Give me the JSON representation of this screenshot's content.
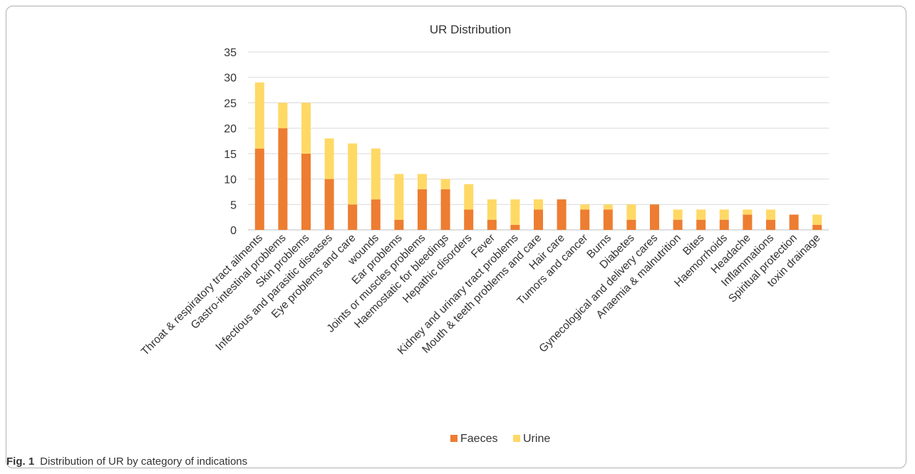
{
  "chart_data": {
    "type": "bar",
    "stacked": true,
    "title": "UR  Distribution",
    "categories": [
      "Throat & respiratory tract ailments",
      "Gastro-intestinal problems",
      "Skin problems",
      "Infectious and parasitic diseases",
      "Eye problems and care",
      "wounds",
      "Ear problems",
      "Joints or muscles problems",
      "Haemostatic for bleedings",
      "Hepathic disorders",
      "Fever",
      "Kidney and urinary tract problems",
      "Mouth & teeth problems and care",
      "Hair care",
      "Tumors and cancer",
      "Burns",
      "Diabetes",
      "Gynecological and delivery cares",
      "Anaemia & malnutrition",
      "Bites",
      "Haemorrhoids",
      "Headache",
      "Inflammations",
      "Spiritual protection",
      "toxin drainage"
    ],
    "series": [
      {
        "name": "Faeces",
        "color": "#ED7D31",
        "values": [
          16,
          20,
          15,
          10,
          5,
          6,
          2,
          8,
          8,
          4,
          2,
          1,
          4,
          6,
          4,
          4,
          2,
          5,
          2,
          2,
          2,
          3,
          2,
          3,
          1
        ]
      },
      {
        "name": "Urine",
        "color": "#FFD966",
        "values": [
          13,
          5,
          10,
          8,
          12,
          10,
          9,
          3,
          2,
          5,
          4,
          5,
          2,
          0,
          1,
          1,
          3,
          0,
          2,
          2,
          2,
          1,
          2,
          0,
          2
        ]
      }
    ],
    "ylim": [
      0,
      35
    ],
    "yticks": [
      0,
      5,
      10,
      15,
      20,
      25,
      30,
      35
    ],
    "grid": true,
    "legend": "bottom"
  },
  "caption": {
    "label": "Fig. 1",
    "text": "Distribution of UR by category of indications"
  }
}
